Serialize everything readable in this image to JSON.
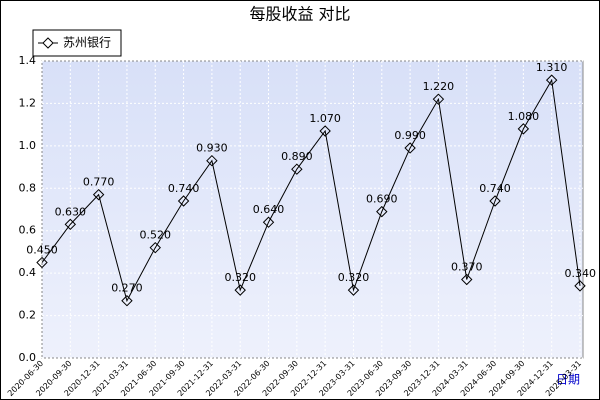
{
  "chart_data": {
    "type": "line",
    "title": "每股收益  对比",
    "x_label": "日期",
    "categories": [
      "2020-06-30",
      "2020-09-30",
      "2020-12-31",
      "2021-03-31",
      "2021-06-30",
      "2021-09-30",
      "2021-12-31",
      "2022-03-31",
      "2022-06-30",
      "2022-09-30",
      "2022-12-31",
      "2023-03-31",
      "2023-06-30",
      "2023-09-30",
      "2023-12-31",
      "2024-03-31",
      "2024-06-30",
      "2024-09-30",
      "2024-12-31",
      "2025-03-31"
    ],
    "series": [
      {
        "name": "苏州银行",
        "color": "#000000",
        "values": [
          0.45,
          0.63,
          0.77,
          0.27,
          0.52,
          0.74,
          0.93,
          0.32,
          0.64,
          0.89,
          1.07,
          0.32,
          0.69,
          0.99,
          1.22,
          0.37,
          0.74,
          1.08,
          1.31,
          0.34
        ],
        "value_labels": [
          "0.450",
          "0.630",
          "0.770",
          "0.270",
          "0.520",
          "0.740",
          "0.930",
          "0.320",
          "0.640",
          "0.890",
          "1.070",
          "0.320",
          "0.690",
          "0.990",
          "1.220",
          "0.370",
          "0.740",
          "1.080",
          "1.310",
          "0.340"
        ]
      }
    ],
    "ylim": [
      0,
      1.4
    ],
    "yticks": [
      {
        "value": 0,
        "label": "0.0"
      },
      0.2,
      0.4,
      0.6,
      0.8,
      {
        "value": 1,
        "label": "1.0"
      },
      1.2,
      1.4
    ],
    "grid": true,
    "legend": "top-left"
  }
}
